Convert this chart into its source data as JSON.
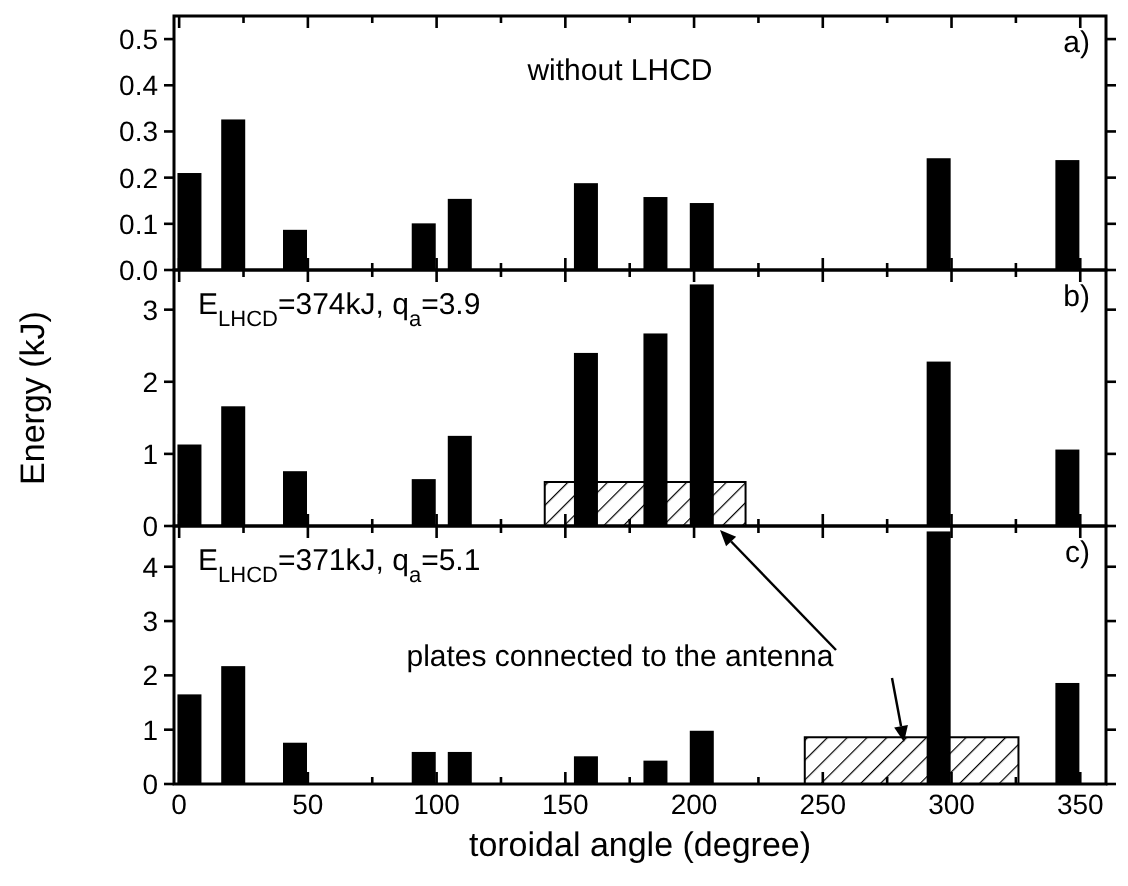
{
  "chart_data": [
    {
      "type": "bar",
      "x": [
        4,
        21,
        45,
        95,
        109,
        158,
        185,
        203,
        295,
        345
      ],
      "series": [
        {
          "color": "#000000",
          "values": [
            0.21,
            0.326,
            0.087,
            0.101,
            0.154,
            0.188,
            0.158,
            0.145,
            0.242,
            0.238
          ]
        }
      ],
      "xlim": [
        -2,
        360
      ],
      "xticks": [
        0,
        {
          "value": 25,
          "label": null
        },
        50,
        {
          "value": 75,
          "label": null
        },
        100,
        {
          "value": 125,
          "label": null
        },
        150,
        {
          "value": 175,
          "label": null
        },
        200,
        {
          "value": 225,
          "label": null
        },
        250,
        {
          "value": 275,
          "label": null
        },
        300,
        {
          "value": 325,
          "label": null
        },
        350
      ],
      "ylim": [
        0,
        0.55
      ],
      "yticks": [
        {
          "value": 0,
          "label": "0.0"
        },
        0.1,
        0.2,
        0.3,
        0.4,
        0.5
      ],
      "tick_labels": "y",
      "annotations": [
        "without LHCD",
        "a)"
      ]
    },
    {
      "type": "bar",
      "x": [
        4,
        21,
        45,
        95,
        109,
        158,
        185,
        203,
        295,
        345
      ],
      "series": [
        {
          "color": "#000000",
          "values": [
            1.13,
            1.66,
            0.76,
            0.65,
            1.25,
            2.4,
            2.67,
            3.35,
            2.28,
            1.06
          ]
        },
        {
          "type": "area",
          "x": [
            142,
            220
          ],
          "values": [
            0.61,
            0.61
          ],
          "color": "#000000"
        }
      ],
      "xlim": [
        -2,
        360
      ],
      "xticks": [
        0,
        {
          "value": 25,
          "label": null
        },
        50,
        {
          "value": 75,
          "label": null
        },
        100,
        {
          "value": 125,
          "label": null
        },
        150,
        {
          "value": 175,
          "label": null
        },
        200,
        {
          "value": 225,
          "label": null
        },
        250,
        {
          "value": 275,
          "label": null
        },
        300,
        {
          "value": 325,
          "label": null
        },
        350
      ],
      "ylim": [
        0,
        3.55
      ],
      "yticks": [
        0,
        1,
        2,
        3
      ],
      "tick_labels": "y",
      "ylabel": "Energy (kJ)",
      "annotations": [
        "E$_{LHCD}$=374kJ, q$_{a}$=3.9",
        "b)"
      ]
    },
    {
      "type": "bar",
      "x": [
        4,
        21,
        45,
        95,
        109,
        158,
        185,
        203,
        295,
        345
      ],
      "series": [
        {
          "color": "#000000",
          "values": [
            1.65,
            2.17,
            0.76,
            0.59,
            0.59,
            0.51,
            0.43,
            0.98,
            4.65,
            1.86
          ]
        },
        {
          "type": "area",
          "x": [
            243,
            326
          ],
          "values": [
            0.86,
            0.86
          ],
          "color": "#000000"
        }
      ],
      "xlim": [
        -2,
        360
      ],
      "xticks": [
        0,
        {
          "value": 25,
          "label": null
        },
        50,
        {
          "value": 75,
          "label": null
        },
        100,
        {
          "value": 125,
          "label": null
        },
        150,
        {
          "value": 175,
          "label": null
        },
        200,
        {
          "value": 225,
          "label": null
        },
        250,
        {
          "value": 275,
          "label": null
        },
        300,
        {
          "value": 325,
          "label": null
        },
        350
      ],
      "ylim": [
        0,
        4.75
      ],
      "yticks": [
        0,
        1,
        2,
        3,
        4
      ],
      "xlabel": "toroidal angle (degree)",
      "annotations": [
        "E$_{LHCD}$=371kJ, q$_{a}$=5.1",
        "c)",
        "plates connected to the antenna"
      ]
    }
  ]
}
